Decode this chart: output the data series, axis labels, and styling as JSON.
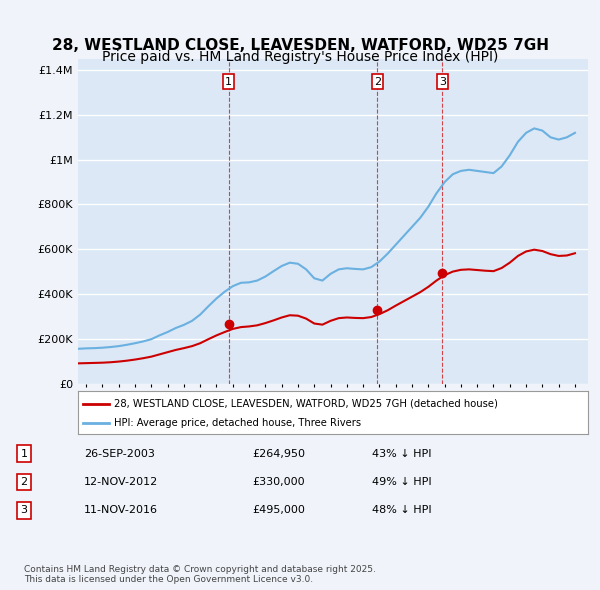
{
  "title": "28, WESTLAND CLOSE, LEAVESDEN, WATFORD, WD25 7GH",
  "subtitle": "Price paid vs. HM Land Registry's House Price Index (HPI)",
  "title_fontsize": 11,
  "subtitle_fontsize": 10,
  "bg_color": "#f0f4fa",
  "plot_bg_color": "#dce8f5",
  "grid_color": "#ffffff",
  "hpi_color": "#6ab0e0",
  "price_color": "#cc0000",
  "marker_color": "#cc0000",
  "sale_dates": [
    2003.74,
    2012.87,
    2016.87
  ],
  "sale_prices": [
    264950,
    330000,
    495000
  ],
  "sale_labels": [
    "1",
    "2",
    "3"
  ],
  "legend_house": "28, WESTLAND CLOSE, LEAVESDEN, WATFORD, WD25 7GH (detached house)",
  "legend_hpi": "HPI: Average price, detached house, Three Rivers",
  "table_entries": [
    [
      "1",
      "26-SEP-2003",
      "£264,950",
      "43% ↓ HPI"
    ],
    [
      "2",
      "12-NOV-2012",
      "£330,000",
      "49% ↓ HPI"
    ],
    [
      "3",
      "11-NOV-2016",
      "£495,000",
      "48% ↓ HPI"
    ]
  ],
  "footnote": "Contains HM Land Registry data © Crown copyright and database right 2025.\nThis data is licensed under the Open Government Licence v3.0.",
  "ylim": [
    0,
    1450000
  ],
  "yticks": [
    0,
    200000,
    400000,
    600000,
    800000,
    1000000,
    1200000,
    1400000
  ],
  "ytick_labels": [
    "£0",
    "£200K",
    "£400K",
    "£600K",
    "£800K",
    "£1M",
    "£1.2M",
    "£1.4M"
  ],
  "xlim_start": 1994.5,
  "xlim_end": 2025.8,
  "hpi_data": {
    "years": [
      1994.5,
      1995.0,
      1995.5,
      1996.0,
      1996.5,
      1997.0,
      1997.5,
      1998.0,
      1998.5,
      1999.0,
      1999.5,
      2000.0,
      2000.5,
      2001.0,
      2001.5,
      2002.0,
      2002.5,
      2003.0,
      2003.5,
      2004.0,
      2004.5,
      2005.0,
      2005.5,
      2006.0,
      2006.5,
      2007.0,
      2007.5,
      2008.0,
      2008.5,
      2009.0,
      2009.5,
      2010.0,
      2010.5,
      2011.0,
      2011.5,
      2012.0,
      2012.5,
      2013.0,
      2013.5,
      2014.0,
      2014.5,
      2015.0,
      2015.5,
      2016.0,
      2016.5,
      2017.0,
      2017.5,
      2018.0,
      2018.5,
      2019.0,
      2019.5,
      2020.0,
      2020.5,
      2021.0,
      2021.5,
      2022.0,
      2022.5,
      2023.0,
      2023.5,
      2024.0,
      2024.5,
      2025.0
    ],
    "values": [
      155000,
      157000,
      158000,
      160000,
      163000,
      167000,
      173000,
      180000,
      188000,
      198000,
      215000,
      230000,
      248000,
      262000,
      280000,
      308000,
      345000,
      380000,
      410000,
      435000,
      450000,
      452000,
      460000,
      478000,
      502000,
      525000,
      540000,
      535000,
      510000,
      470000,
      460000,
      490000,
      510000,
      515000,
      512000,
      510000,
      520000,
      545000,
      580000,
      620000,
      660000,
      700000,
      740000,
      790000,
      850000,
      900000,
      935000,
      950000,
      955000,
      950000,
      945000,
      940000,
      970000,
      1020000,
      1080000,
      1120000,
      1140000,
      1130000,
      1100000,
      1090000,
      1100000,
      1120000
    ]
  },
  "price_data": {
    "years": [
      1994.5,
      1995.0,
      1995.5,
      1996.0,
      1996.5,
      1997.0,
      1997.5,
      1998.0,
      1998.5,
      1999.0,
      1999.5,
      2000.0,
      2000.5,
      2001.0,
      2001.5,
      2002.0,
      2002.5,
      2003.0,
      2003.5,
      2004.0,
      2004.5,
      2005.0,
      2005.5,
      2006.0,
      2006.5,
      2007.0,
      2007.5,
      2008.0,
      2008.5,
      2009.0,
      2009.5,
      2010.0,
      2010.5,
      2011.0,
      2011.5,
      2012.0,
      2012.5,
      2013.0,
      2013.5,
      2014.0,
      2014.5,
      2015.0,
      2015.5,
      2016.0,
      2016.5,
      2017.0,
      2017.5,
      2018.0,
      2018.5,
      2019.0,
      2019.5,
      2020.0,
      2020.5,
      2021.0,
      2021.5,
      2022.0,
      2022.5,
      2023.0,
      2023.5,
      2024.0,
      2024.5,
      2025.0
    ],
    "values": [
      90000,
      91000,
      92000,
      93000,
      95000,
      98000,
      102000,
      107000,
      113000,
      120000,
      130000,
      140000,
      150000,
      158000,
      167000,
      180000,
      198000,
      215000,
      230000,
      244000,
      252000,
      255000,
      260000,
      270000,
      282000,
      295000,
      305000,
      303000,
      290000,
      268000,
      263000,
      280000,
      292000,
      295000,
      293000,
      292000,
      297000,
      310000,
      327000,
      348000,
      368000,
      388000,
      408000,
      432000,
      460000,
      484000,
      500000,
      508000,
      510000,
      507000,
      504000,
      502000,
      516000,
      540000,
      570000,
      590000,
      598000,
      592000,
      578000,
      570000,
      572000,
      582000
    ]
  }
}
